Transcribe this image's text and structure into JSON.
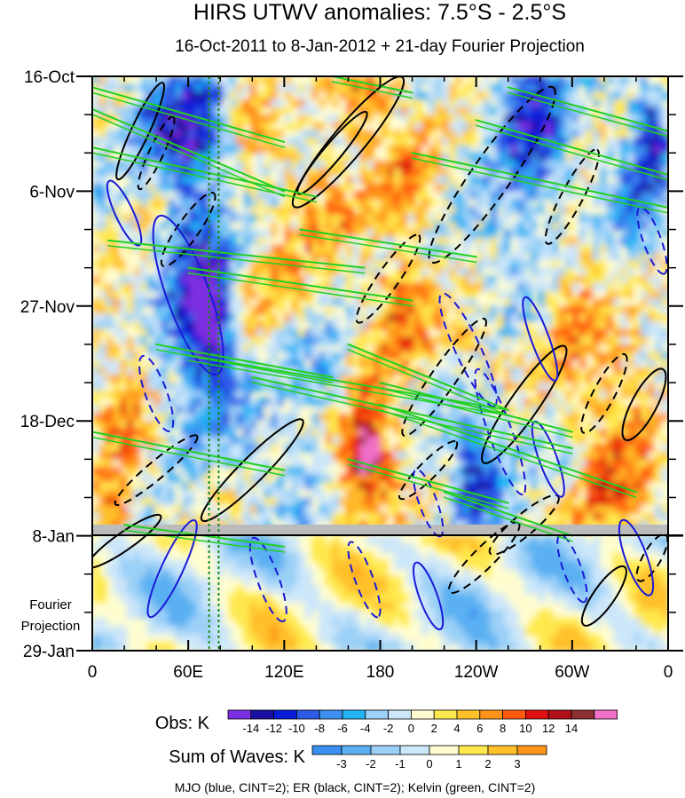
{
  "chart_data": {
    "type": "heatmap",
    "title": "HIRS UTWV anomalies: 7.5°S - 2.5°S",
    "subtitle": "16-Oct-2011 to 8-Jan-2012 + 21-day Fourier Projection",
    "x_tick_labels": [
      "0",
      "60E",
      "120E",
      "180",
      "120W",
      "60W",
      "0"
    ],
    "x_tick_longitudes": [
      0,
      60,
      120,
      180,
      240,
      300,
      360
    ],
    "xlim": [
      0,
      360
    ],
    "y_tick_labels": [
      "16-Oct",
      "6-Nov",
      "27-Nov",
      "18-Dec",
      "8-Jan",
      "29-Jan"
    ],
    "y_tick_days": [
      0,
      21,
      42,
      63,
      84,
      105
    ],
    "ylim_days": [
      0,
      105
    ],
    "observation_end_day": 84,
    "projection_label_lines": [
      "Fourier",
      "Projection"
    ],
    "reference_longitudes": [
      73,
      79
    ],
    "obs_colorbar": {
      "label": "Obs: K",
      "levels": [
        "-14",
        "-12",
        "-10",
        "-8",
        "-6",
        "-4",
        "-2",
        "0",
        "2",
        "4",
        "6",
        "8",
        "10",
        "12",
        "14"
      ],
      "colors": [
        "#7b2fe0",
        "#1a0fa0",
        "#0a1ed8",
        "#2d5be8",
        "#3d8ff0",
        "#22b4f5",
        "#9bd0f7",
        "#cce6fa",
        "#fffdd0",
        "#ffe84d",
        "#ffc02a",
        "#ff9418",
        "#ff5a10",
        "#e01010",
        "#b01018",
        "#8b2f30",
        "#f06fc8"
      ]
    },
    "waves_colorbar": {
      "label": "Sum of Waves: K",
      "levels": [
        "-3",
        "-2",
        "-1",
        "0",
        "1",
        "2",
        "3"
      ],
      "colors": [
        "#3a8ff0",
        "#5ab0f2",
        "#9bd0f7",
        "#cce6fa",
        "#fffdd0",
        "#ffe84d",
        "#ffc02a",
        "#ff9418"
      ]
    },
    "footnote": "MJO (blue, CINT=2); ER (black, CINT=2); Kelvin (green, CINT=2)",
    "legend_series": [
      {
        "name": "MJO",
        "color": "#1a1ad8",
        "cint": 2
      },
      {
        "name": "ER",
        "color": "#000000",
        "cint": 2
      },
      {
        "name": "Kelvin",
        "color": "#22d022",
        "cint": 2
      }
    ]
  }
}
